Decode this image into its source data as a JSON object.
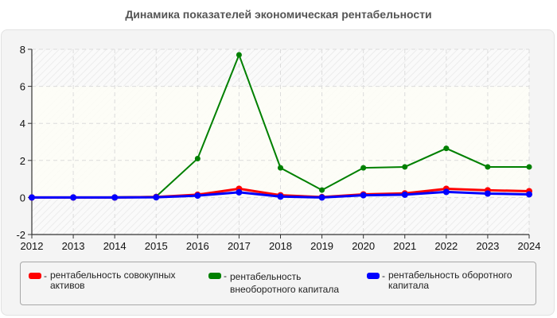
{
  "title": "Динамика показателей экономическая рентабельности",
  "legend": {
    "items": [
      {
        "label": "рентабельность совокупных активов",
        "line1": "рентабельность совокупных",
        "line2": "активов",
        "color": "#ff0000"
      },
      {
        "label": "рентабельность внеоборотного капитала",
        "line1": "рентабельность",
        "line2": "внеоборотного капитала",
        "color": "#008000"
      },
      {
        "label": "рентабельность оборотного капитала",
        "line1": "рентабельность оборотного",
        "line2": "капитала",
        "color": "#0000ff"
      }
    ],
    "separator": "-"
  },
  "chart_data": {
    "type": "line",
    "title": "Динамика показателей экономическая рентабельности",
    "xlabel": "",
    "ylabel": "",
    "categories": [
      "2012",
      "2013",
      "2014",
      "2015",
      "2016",
      "2017",
      "2018",
      "2019",
      "2020",
      "2021",
      "2022",
      "2023",
      "2024"
    ],
    "y_ticks": [
      "-2",
      "0",
      "2",
      "4",
      "6",
      "8"
    ],
    "ylim": [
      -2,
      8
    ],
    "grid": true,
    "legend_position": "bottom",
    "series": [
      {
        "name": "рентабельность совокупных активов",
        "color": "#ff0000",
        "values": [
          0,
          0,
          0,
          0.03,
          0.15,
          0.47,
          0.12,
          0.02,
          0.17,
          0.22,
          0.47,
          0.39,
          0.34
        ]
      },
      {
        "name": "рентабельность внеоборотного капитала",
        "color": "#008000",
        "values": [
          0,
          0,
          0.02,
          0.05,
          2.1,
          7.7,
          1.6,
          0.4,
          1.6,
          1.65,
          2.65,
          1.65,
          1.65
        ]
      },
      {
        "name": "рентабельность оборотного капитала",
        "color": "#0000ff",
        "values": [
          0,
          0,
          0,
          0.01,
          0.1,
          0.28,
          0.05,
          0.0,
          0.12,
          0.15,
          0.3,
          0.21,
          0.17
        ]
      }
    ]
  }
}
